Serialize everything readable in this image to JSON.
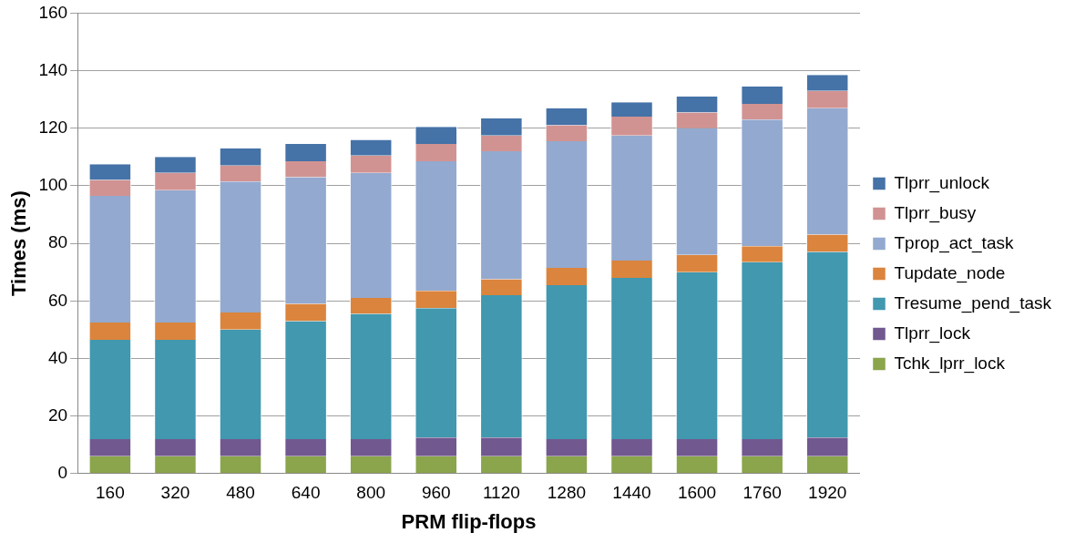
{
  "chart_data": {
    "type": "bar",
    "stacked": true,
    "xlabel": "PRM flip-flops",
    "ylabel": "Times (ms)",
    "categories": [
      "160",
      "320",
      "480",
      "640",
      "800",
      "960",
      "1120",
      "1280",
      "1440",
      "1600",
      "1760",
      "1920"
    ],
    "ylim": [
      0,
      160
    ],
    "yticks": [
      0,
      20,
      40,
      60,
      80,
      100,
      120,
      140,
      160
    ],
    "grid": "y",
    "legend": "right",
    "series": [
      {
        "name": "Tchk_lprr_lock",
        "color": "#8aa54b",
        "values": [
          6,
          6,
          6,
          6,
          6,
          6,
          6,
          6,
          6,
          6,
          6,
          6
        ]
      },
      {
        "name": "Tlprr_lock",
        "color": "#71588f",
        "values": [
          6,
          6,
          6,
          6,
          6,
          6.5,
          6.5,
          6,
          6,
          6,
          6,
          6.5
        ]
      },
      {
        "name": "Tresume_pend_task",
        "color": "#4198af",
        "values": [
          34.5,
          34.5,
          38,
          41,
          43.5,
          45,
          49.5,
          53.5,
          56,
          58,
          61.5,
          64.5
        ]
      },
      {
        "name": "Tupdate_node",
        "color": "#db843d",
        "values": [
          6,
          6,
          6,
          6,
          5.5,
          6,
          5.5,
          6,
          6,
          6,
          5.5,
          6
        ]
      },
      {
        "name": "Tprop_act_task",
        "color": "#93a9cf",
        "values": [
          44,
          46,
          45.5,
          44,
          43.5,
          45,
          44.5,
          44,
          43.5,
          44,
          44,
          44
        ]
      },
      {
        "name": "Tlprr_busy",
        "color": "#d19392",
        "values": [
          5.5,
          6,
          5.5,
          5.5,
          6,
          6,
          5.5,
          5.5,
          6.5,
          5.5,
          5.5,
          6
        ]
      },
      {
        "name": "Tlprr_unlock",
        "color": "#4572a7",
        "values": [
          5.5,
          5.5,
          6,
          6,
          5.5,
          6,
          6,
          6,
          5,
          5.5,
          6,
          5.5
        ]
      }
    ]
  }
}
